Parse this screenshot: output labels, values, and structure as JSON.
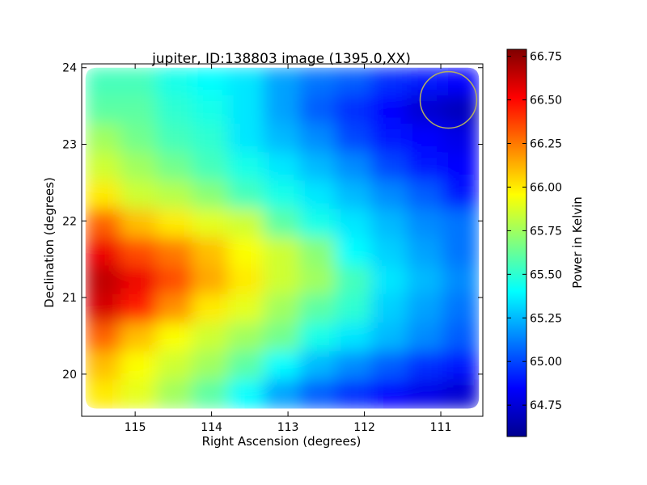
{
  "chart_data": {
    "type": "heatmap",
    "title": "jupiter, ID:138803 image (1395.0,XX)",
    "xlabel": "Right Ascension (degrees)",
    "ylabel": "Declination (degrees)",
    "xlim": [
      115.7,
      110.45
    ],
    "ylim": [
      19.45,
      24.05
    ],
    "x_ticks": [
      115,
      114,
      113,
      112,
      111
    ],
    "y_ticks": [
      20,
      21,
      22,
      23,
      24
    ],
    "colorbar": {
      "label": "Power in Kelvin",
      "range": [
        64.57,
        66.79
      ],
      "ticks": [
        "64.75",
        "65.00",
        "65.25",
        "65.50",
        "65.75",
        "66.00",
        "66.25",
        "66.50",
        "66.75"
      ],
      "colormap": "jet"
    },
    "map_extent": {
      "ra": [
        115.65,
        110.5
      ],
      "dec": [
        19.55,
        24.0
      ]
    },
    "map_values_kelvin": [
      [
        65.55,
        65.55,
        65.45,
        65.4,
        65.35,
        65.2,
        65.1,
        65.05,
        64.95,
        64.9,
        64.85
      ],
      [
        65.6,
        65.6,
        65.5,
        65.45,
        65.35,
        65.2,
        65.05,
        64.95,
        64.85,
        64.75,
        64.7
      ],
      [
        65.75,
        65.65,
        65.55,
        65.5,
        65.35,
        65.25,
        65.15,
        65.0,
        64.9,
        64.85,
        64.8
      ],
      [
        65.85,
        65.75,
        65.65,
        65.55,
        65.45,
        65.35,
        65.25,
        65.15,
        65.0,
        64.9,
        64.85
      ],
      [
        66.0,
        65.85,
        65.8,
        65.7,
        65.55,
        65.45,
        65.35,
        65.25,
        65.15,
        65.05,
        64.9
      ],
      [
        66.3,
        66.1,
        66.0,
        65.9,
        65.85,
        65.6,
        65.45,
        65.35,
        65.25,
        65.15,
        65.1
      ],
      [
        66.55,
        66.35,
        66.25,
        66.1,
        65.95,
        65.85,
        65.7,
        65.4,
        65.3,
        65.2,
        65.1
      ],
      [
        66.65,
        66.55,
        66.35,
        66.15,
        66.0,
        65.85,
        65.75,
        65.55,
        65.35,
        65.25,
        65.15
      ],
      [
        66.6,
        66.45,
        66.2,
        66.0,
        65.9,
        65.75,
        65.6,
        65.5,
        65.3,
        65.2,
        65.1
      ],
      [
        66.3,
        66.1,
        65.95,
        65.85,
        65.75,
        65.65,
        65.45,
        65.35,
        65.25,
        65.15,
        65.05
      ],
      [
        66.1,
        65.95,
        65.85,
        65.75,
        65.6,
        65.4,
        65.25,
        65.15,
        65.05,
        64.95,
        64.9
      ],
      [
        66.0,
        65.9,
        65.75,
        65.6,
        65.4,
        65.2,
        65.05,
        64.95,
        64.85,
        64.8,
        64.75
      ]
    ],
    "annotation": {
      "shape": "circle",
      "center_ra": 110.9,
      "center_dec": 23.58,
      "radius_deg": 0.37,
      "color": "#b3ae63"
    }
  }
}
